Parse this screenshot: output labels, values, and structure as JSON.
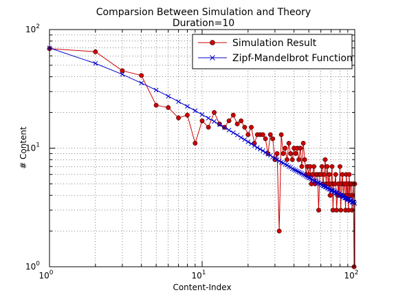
{
  "chart_data": {
    "type": "line",
    "title": "Comparsion Between Simulation and Theory",
    "subtitle": "Duration=10",
    "xlabel": "Content-Index",
    "ylabel": "# Content",
    "xscale": "log",
    "yscale": "log",
    "xlim": [
      1,
      100
    ],
    "ylim": [
      1,
      100
    ],
    "x_ticks": [
      {
        "base": "10",
        "exp": "0",
        "value": 1
      },
      {
        "base": "10",
        "exp": "1",
        "value": 10
      },
      {
        "base": "10",
        "exp": "2",
        "value": 100
      }
    ],
    "y_ticks": [
      {
        "base": "10",
        "exp": "0",
        "value": 1
      },
      {
        "base": "10",
        "exp": "1",
        "value": 10
      },
      {
        "base": "10",
        "exp": "2",
        "value": 100
      }
    ],
    "grid": true,
    "legend_position": "top-right",
    "series": [
      {
        "name": "Simulation Result",
        "color": "#cc0000",
        "marker": "circle",
        "values": [
          69,
          65,
          45,
          41,
          23,
          22,
          18,
          19,
          11,
          17,
          15,
          20,
          16,
          15,
          17,
          19,
          16,
          17,
          15,
          13,
          15,
          11,
          13,
          13,
          13,
          12,
          9,
          13,
          12,
          8,
          9,
          2,
          13,
          9,
          10,
          8,
          11,
          9,
          8,
          10,
          9,
          10,
          8,
          10,
          7,
          11,
          8,
          6,
          7,
          6,
          7,
          5,
          6,
          7,
          5,
          6,
          6,
          3,
          6,
          6,
          7,
          5,
          6,
          8,
          5,
          7,
          5,
          6,
          4,
          5,
          7,
          3,
          5,
          5,
          6,
          3,
          4,
          5,
          4,
          7,
          3,
          5,
          6,
          4,
          5,
          5,
          3,
          6,
          4,
          5,
          3,
          6,
          4,
          5,
          5,
          3,
          4,
          5,
          1,
          5
        ]
      },
      {
        "name": "Zipf-Mandelbrot Function",
        "color": "#0000cc",
        "marker": "x",
        "values": [
          70.0,
          51.8,
          41.9,
          35.4,
          30.9,
          27.4,
          24.7,
          22.5,
          20.7,
          19.2,
          17.9,
          16.8,
          15.8,
          14.9,
          14.2,
          13.5,
          12.9,
          12.3,
          11.8,
          11.3,
          10.9,
          10.5,
          10.1,
          9.8,
          9.5,
          9.2,
          8.9,
          8.7,
          8.4,
          8.2,
          8.0,
          7.8,
          7.6,
          7.5,
          7.3,
          7.2,
          7.0,
          6.9,
          6.7,
          6.6,
          6.5,
          6.4,
          6.3,
          6.2,
          6.1,
          6.0,
          5.9,
          5.8,
          5.7,
          5.6,
          5.6,
          5.5,
          5.4,
          5.3,
          5.3,
          5.2,
          5.1,
          5.1,
          5.0,
          5.0,
          4.9,
          4.8,
          4.8,
          4.7,
          4.7,
          4.6,
          4.6,
          4.5,
          4.5,
          4.4,
          4.4,
          4.4,
          4.3,
          4.3,
          4.2,
          4.2,
          4.2,
          4.1,
          4.1,
          4.0,
          4.0,
          4.0,
          3.9,
          3.9,
          3.9,
          3.8,
          3.8,
          3.8,
          3.7,
          3.7,
          3.7,
          3.7,
          3.6,
          3.6,
          3.6,
          3.5,
          3.5,
          3.5,
          3.5,
          3.4
        ]
      }
    ]
  }
}
